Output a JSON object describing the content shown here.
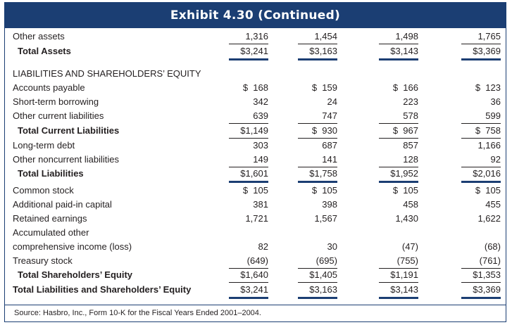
{
  "exhibit": {
    "title": "Exhibit 4.30 (Continued)",
    "source": "Source: Hasbro, Inc., Form 10-K for the Fiscal Years Ended 2001–2004."
  },
  "rows": [
    {
      "label": "Other assets",
      "values": [
        "1,316",
        "1,454",
        "1,498",
        "1,765"
      ]
    },
    {
      "label": "Total Assets",
      "values": [
        "$3,241",
        "$3,163",
        "$3,143",
        "$3,369"
      ]
    },
    {
      "label": "LIABILITIES AND SHAREHOLDERS’ EQUITY",
      "values": []
    },
    {
      "label": "Accounts payable",
      "values": [
        "$  168",
        "$  159",
        "$  166",
        "$  123"
      ]
    },
    {
      "label": "Short-term borrowing",
      "values": [
        "342",
        "24",
        "223",
        "36"
      ]
    },
    {
      "label": "Other current liabilities",
      "values": [
        "639",
        "747",
        "578",
        "599"
      ]
    },
    {
      "label": "Total Current Liabilities",
      "values": [
        "$1,149",
        "$  930",
        "$  967",
        "$  758"
      ]
    },
    {
      "label": "Long-term debt",
      "values": [
        "303",
        "687",
        "857",
        "1,166"
      ]
    },
    {
      "label": "Other noncurrent liabilities",
      "values": [
        "149",
        "141",
        "128",
        "92"
      ]
    },
    {
      "label": "Total Liabilities",
      "values": [
        "$1,601",
        "$1,758",
        "$1,952",
        "$2,016"
      ]
    },
    {
      "label": "Common stock",
      "values": [
        "$  105",
        "$  105",
        "$  105",
        "$  105"
      ]
    },
    {
      "label": "Additional paid-in capital",
      "values": [
        "381",
        "398",
        "458",
        "455"
      ]
    },
    {
      "label": "Retained earnings",
      "values": [
        "1,721",
        "1,567",
        "1,430",
        "1,622"
      ]
    },
    {
      "label": "Accumulated other",
      "values": []
    },
    {
      "label": "comprehensive income (loss)",
      "values": [
        "82",
        "30",
        "(47)",
        "(68)"
      ]
    },
    {
      "label": "Treasury stock",
      "values": [
        "(649)",
        "(695)",
        "(755)",
        "(761)"
      ]
    },
    {
      "label": "Total Shareholders’ Equity",
      "values": [
        "$1,640",
        "$1,405",
        "$1,191",
        "$1,353"
      ]
    },
    {
      "label": "Total Liabilities and Shareholders’ Equity",
      "values": [
        "$3,241",
        "$3,163",
        "$3,143",
        "$3,369"
      ]
    }
  ],
  "colors": {
    "accent": "#1b3e73",
    "text": "#231f20"
  }
}
